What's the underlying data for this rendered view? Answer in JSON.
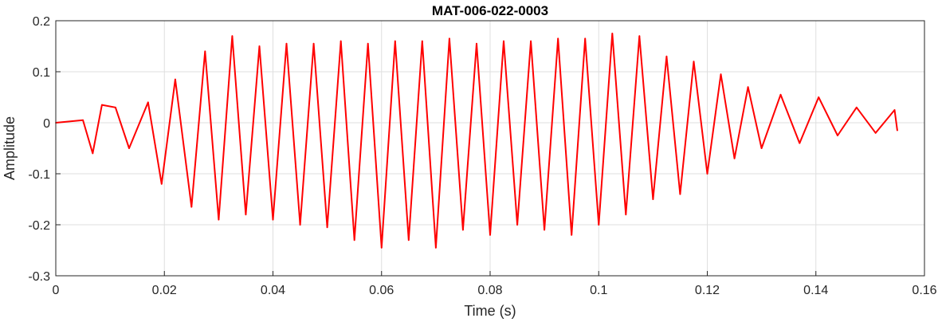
{
  "chart_data": {
    "type": "line",
    "title": "MAT-006-022-0003",
    "xlabel": "Time (s)",
    "ylabel": "Amplitude",
    "xlim": [
      0,
      0.16
    ],
    "ylim": [
      -0.3,
      0.2
    ],
    "xticks": [
      0,
      0.02,
      0.04,
      0.06,
      0.08,
      0.1,
      0.12,
      0.14,
      0.16
    ],
    "xtick_labels": [
      "0",
      "0.02",
      "0.04",
      "0.06",
      "0.08",
      "0.1",
      "0.12",
      "0.14",
      "0.16"
    ],
    "yticks": [
      -0.3,
      -0.2,
      -0.1,
      0,
      0.1,
      0.2
    ],
    "ytick_labels": [
      "-0.3",
      "-0.2",
      "-0.1",
      "0",
      "0.1",
      "0.2"
    ],
    "grid": true,
    "line_color": "#ff0000",
    "series": [
      {
        "x": [
          0.0,
          0.005,
          0.0068,
          0.0085,
          0.011,
          0.0135,
          0.017,
          0.0195,
          0.022,
          0.025,
          0.0275,
          0.03,
          0.0325,
          0.035,
          0.0375,
          0.04,
          0.0425,
          0.045,
          0.0475,
          0.05,
          0.0525,
          0.055,
          0.0575,
          0.06,
          0.0625,
          0.065,
          0.0675,
          0.07,
          0.0725,
          0.075,
          0.0775,
          0.08,
          0.0825,
          0.085,
          0.0875,
          0.09,
          0.0925,
          0.095,
          0.0975,
          0.1,
          0.1025,
          0.105,
          0.1075,
          0.11,
          0.1125,
          0.115,
          0.1175,
          0.12,
          0.1225,
          0.125,
          0.1275,
          0.13,
          0.1335,
          0.137,
          0.1405,
          0.144,
          0.1475,
          0.151,
          0.1545,
          0.155
        ],
        "y": [
          0.0,
          0.005,
          -0.06,
          0.035,
          0.03,
          -0.05,
          0.04,
          -0.12,
          0.085,
          -0.165,
          0.14,
          -0.19,
          0.17,
          -0.18,
          0.15,
          -0.19,
          0.155,
          -0.2,
          0.155,
          -0.205,
          0.16,
          -0.23,
          0.155,
          -0.245,
          0.16,
          -0.23,
          0.16,
          -0.245,
          0.165,
          -0.21,
          0.155,
          -0.22,
          0.16,
          -0.2,
          0.16,
          -0.21,
          0.165,
          -0.22,
          0.165,
          -0.2,
          0.175,
          -0.18,
          0.17,
          -0.15,
          0.13,
          -0.14,
          0.12,
          -0.1,
          0.095,
          -0.07,
          0.07,
          -0.05,
          0.055,
          -0.04,
          0.05,
          -0.025,
          0.03,
          -0.02,
          0.025,
          -0.015
        ]
      }
    ]
  }
}
